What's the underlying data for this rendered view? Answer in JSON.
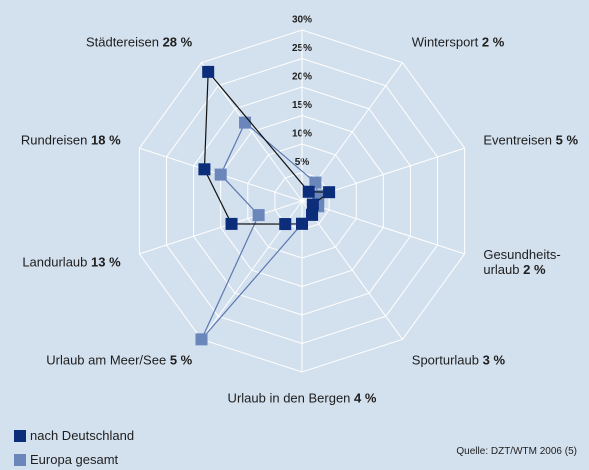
{
  "chart_data": {
    "type": "radar",
    "categories": [
      "Wintersport",
      "Eventreisen",
      "Gesundheits-urlaub",
      "Sporturlaub",
      "Urlaub in den Bergen",
      "Urlaub am Meer/See",
      "Landurlaub",
      "Rundreisen",
      "Städtereisen"
    ],
    "value_labels": [
      "2 %",
      "5 %",
      "2 %",
      "3 %",
      "4 %",
      "5 %",
      "13 %",
      "18 %",
      "28 %"
    ],
    "series": [
      {
        "name": "nach Deutschland",
        "color": "#0b2d7a",
        "line_color": "#111111",
        "values": [
          2,
          5,
          2,
          3,
          4,
          5,
          13,
          18,
          28
        ]
      },
      {
        "name": "Europa gesamt",
        "color": "#6a86bb",
        "line_color": "#5c78b0",
        "values": [
          4,
          3,
          3,
          3,
          4,
          30,
          8,
          15,
          17
        ]
      }
    ],
    "ylim": [
      0,
      30
    ],
    "yticks": [
      {
        "value": 5,
        "label": "5%"
      },
      {
        "value": 10,
        "label": "10%"
      },
      {
        "value": 15,
        "label": "15%"
      },
      {
        "value": 20,
        "label": "20%"
      },
      {
        "value": 25,
        "label": "25%"
      },
      {
        "value": 30,
        "label": "30%"
      }
    ],
    "source": "Quelle: DZT/WTM 2006 (5)"
  }
}
